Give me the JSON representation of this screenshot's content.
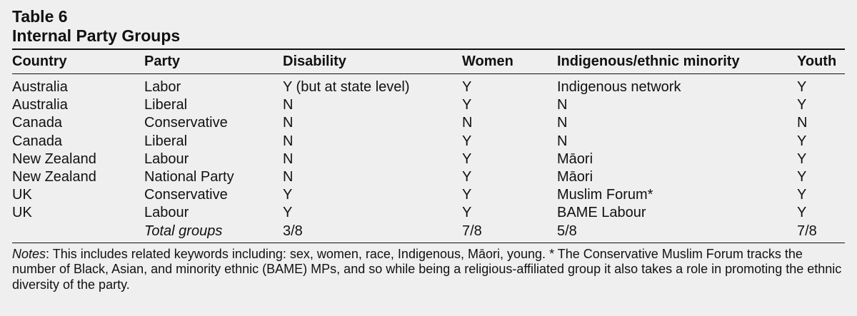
{
  "table": {
    "number": "Table 6",
    "title": "Internal Party Groups",
    "headers": [
      "Country",
      "Party",
      "Disability",
      "Women",
      "Indigenous/ethnic minority",
      "Youth"
    ],
    "rows": [
      [
        "Australia",
        "Labor",
        "Y (but at state level)",
        "Y",
        "Indigenous network",
        "Y"
      ],
      [
        "Australia",
        "Liberal",
        "N",
        "Y",
        "N",
        "Y"
      ],
      [
        "Canada",
        "Conservative",
        "N",
        "N",
        "N",
        "N"
      ],
      [
        "Canada",
        "Liberal",
        "N",
        "Y",
        "N",
        "Y"
      ],
      [
        "New Zealand",
        "Labour",
        "N",
        "Y",
        "Māori",
        "Y"
      ],
      [
        "New Zealand",
        "National Party",
        "N",
        "Y",
        "Māori",
        "Y"
      ],
      [
        "UK",
        "Conservative",
        "Y",
        "Y",
        "Muslim Forum*",
        "Y"
      ],
      [
        "UK",
        "Labour",
        "Y",
        "Y",
        "BAME Labour",
        "Y"
      ]
    ],
    "total": {
      "label": "Total groups",
      "disability": "3/8",
      "women": "7/8",
      "indigenous": "5/8",
      "youth": "7/8"
    }
  },
  "notes": {
    "label": "Notes",
    "text": ": This includes related keywords including: sex, women, race, Indigenous, Māori, young. * The Conservative Muslim Forum tracks the number of Black, Asian, and minority ethnic (BAME) MPs, and so while being a religious-affiliated group it also takes a role in promoting the ethnic diversity of the party."
  }
}
